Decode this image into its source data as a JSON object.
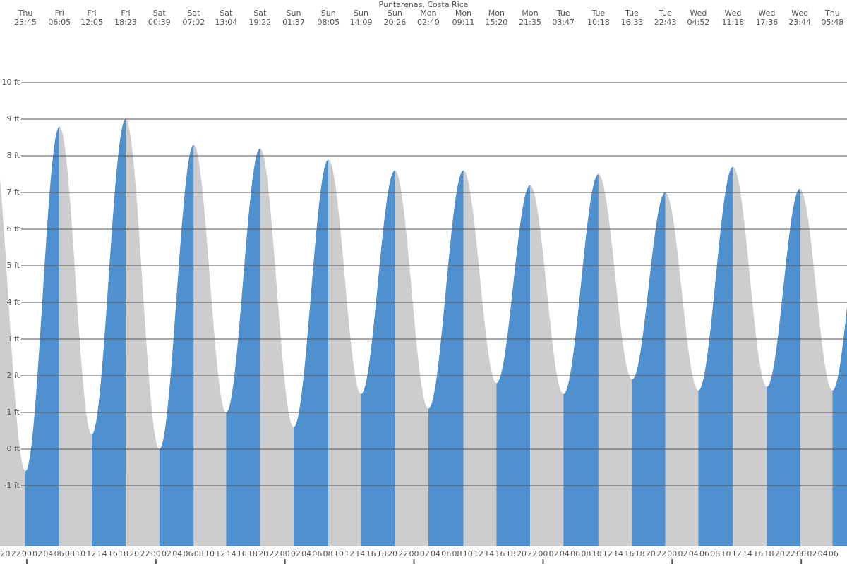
{
  "chart_data": {
    "type": "tide",
    "title": "Puntarenas, Costa Rica",
    "rise_color": "#4e91ce",
    "fall_color": "#cdcdcd",
    "ylim": [
      -1,
      10
    ],
    "yticks": [
      {
        "value": -1,
        "label": "-1 ft"
      },
      {
        "value": 0,
        "label": "0 ft"
      },
      {
        "value": 1,
        "label": "1 ft"
      },
      {
        "value": 2,
        "label": "2 ft"
      },
      {
        "value": 3,
        "label": "3 ft"
      },
      {
        "value": 4,
        "label": "4 ft"
      },
      {
        "value": 5,
        "label": "5 ft"
      },
      {
        "value": 6,
        "label": "6 ft"
      },
      {
        "value": 7,
        "label": "7 ft"
      },
      {
        "value": 8,
        "label": "8 ft"
      },
      {
        "value": 9,
        "label": "9 ft"
      },
      {
        "value": 10,
        "label": "10 ft"
      }
    ],
    "grid": true,
    "events": [
      {
        "day": "Thu",
        "time": "23:45",
        "height": -0.6
      },
      {
        "day": "Fri",
        "time": "06:05",
        "height": 8.8
      },
      {
        "day": "Fri",
        "time": "12:05",
        "height": 0.4
      },
      {
        "day": "Fri",
        "time": "18:23",
        "height": 9.0
      },
      {
        "day": "Sat",
        "time": "00:39",
        "height": 0.0
      },
      {
        "day": "Sat",
        "time": "07:02",
        "height": 8.3
      },
      {
        "day": "Sat",
        "time": "13:04",
        "height": 1.0
      },
      {
        "day": "Sat",
        "time": "19:22",
        "height": 8.2
      },
      {
        "day": "Sun",
        "time": "01:37",
        "height": 0.6
      },
      {
        "day": "Sun",
        "time": "08:05",
        "height": 7.9
      },
      {
        "day": "Sun",
        "time": "14:09",
        "height": 1.5
      },
      {
        "day": "Sun",
        "time": "20:26",
        "height": 7.6
      },
      {
        "day": "Mon",
        "time": "02:40",
        "height": 1.1
      },
      {
        "day": "Mon",
        "time": "09:11",
        "height": 7.6
      },
      {
        "day": "Mon",
        "time": "15:20",
        "height": 1.8
      },
      {
        "day": "Mon",
        "time": "21:35",
        "height": 7.2
      },
      {
        "day": "Tue",
        "time": "03:47",
        "height": 1.5
      },
      {
        "day": "Tue",
        "time": "10:18",
        "height": 7.5
      },
      {
        "day": "Tue",
        "time": "16:33",
        "height": 1.9
      },
      {
        "day": "Tue",
        "time": "22:43",
        "height": 7.0
      },
      {
        "day": "Wed",
        "time": "04:52",
        "height": 1.6
      },
      {
        "day": "Wed",
        "time": "11:18",
        "height": 7.7
      },
      {
        "day": "Wed",
        "time": "17:36",
        "height": 1.7
      },
      {
        "day": "Wed",
        "time": "23:44",
        "height": 7.1
      },
      {
        "day": "Thu",
        "time": "05:48",
        "height": 1.6
      }
    ],
    "hour_labels": [
      "20",
      "22",
      "00",
      "02",
      "04",
      "06",
      "08",
      "10",
      "12",
      "14",
      "16",
      "18",
      "20",
      "22",
      "00",
      "02",
      "04",
      "06",
      "08",
      "10",
      "12",
      "14",
      "16",
      "18",
      "20",
      "22",
      "00",
      "02",
      "04",
      "06",
      "08",
      "10",
      "12",
      "14",
      "16",
      "18",
      "20",
      "22",
      "00",
      "02",
      "04",
      "06",
      "08",
      "10",
      "12",
      "14",
      "16",
      "18",
      "20",
      "22",
      "00",
      "02",
      "04",
      "06",
      "08",
      "10",
      "12",
      "14",
      "16",
      "18",
      "20",
      "22",
      "00",
      "02",
      "04",
      "06",
      "08",
      "10",
      "12",
      "14",
      "16",
      "18",
      "20",
      "22",
      "00",
      "02",
      "04",
      "06"
    ]
  }
}
